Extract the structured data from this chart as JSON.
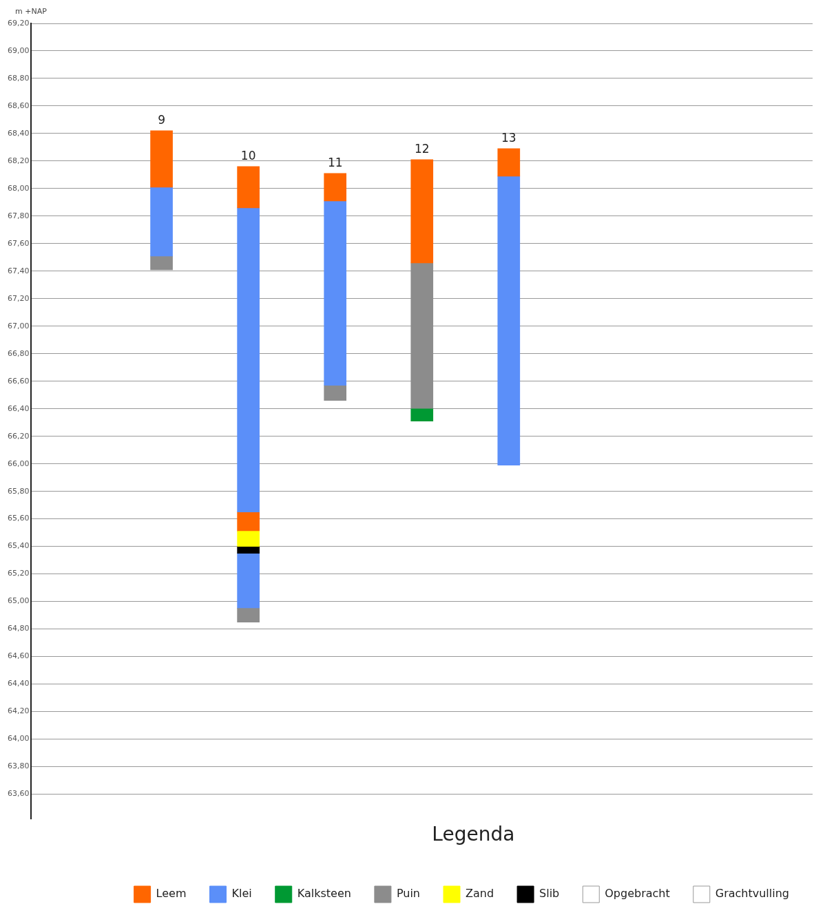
{
  "chart_data": {
    "type": "bar",
    "ylabel": "m +NAP",
    "legend_title": "Legenda",
    "legend": "bottom right",
    "grid": "y",
    "categories": [
      null,
      "9",
      "10",
      "11",
      "12",
      "13",
      null,
      null,
      null
    ],
    "ylim": [
      63.42,
      69.2
    ],
    "yticks": [
      {
        "value": 63.6,
        "label": "63,60"
      },
      {
        "value": 63.8,
        "label": "63,80"
      },
      {
        "value": 64.0,
        "label": "64,00"
      },
      {
        "value": 64.2,
        "label": "64,20"
      },
      {
        "value": 64.4,
        "label": "64,40"
      },
      {
        "value": 64.6,
        "label": "64,60"
      },
      {
        "value": 64.8,
        "label": "64,80"
      },
      {
        "value": 65.0,
        "label": "65,00"
      },
      {
        "value": 65.2,
        "label": "65,20"
      },
      {
        "value": 65.4,
        "label": "65,40"
      },
      {
        "value": 65.6,
        "label": "65,60"
      },
      {
        "value": 65.8,
        "label": "65,80"
      },
      {
        "value": 66.0,
        "label": "66,00"
      },
      {
        "value": 66.2,
        "label": "66,20"
      },
      {
        "value": 66.4,
        "label": "66,40"
      },
      {
        "value": 66.6,
        "label": "66,60"
      },
      {
        "value": 66.8,
        "label": "66,80"
      },
      {
        "value": 67.0,
        "label": "67,00"
      },
      {
        "value": 67.2,
        "label": "67,20"
      },
      {
        "value": 67.4,
        "label": "67,40"
      },
      {
        "value": 67.6,
        "label": "67,60"
      },
      {
        "value": 67.8,
        "label": "67,80"
      },
      {
        "value": 68.0,
        "label": "68,00"
      },
      {
        "value": 68.2,
        "label": "68,20"
      },
      {
        "value": 68.4,
        "label": "68,40"
      },
      {
        "value": 68.6,
        "label": "68,60"
      },
      {
        "value": 68.8,
        "label": "68,80"
      },
      {
        "value": 69.0,
        "label": "69,00"
      },
      {
        "value": 69.2,
        "label": "69,20"
      }
    ],
    "series": [
      {
        "name": "Leem",
        "color": "#ff6600",
        "values": [
          null,
          0.41,
          0.3,
          0.2,
          0.75,
          0.2,
          null,
          null,
          null
        ],
        "base": [
          null,
          68.01,
          67.86,
          67.91,
          67.46,
          68.09,
          null,
          null,
          null
        ]
      },
      {
        "name": "Klei",
        "color": "#5b8ff9",
        "values": [
          null,
          0.5,
          2.21,
          1.34,
          null,
          2.1,
          null,
          null,
          null
        ],
        "base": [
          null,
          67.51,
          65.65,
          66.57,
          null,
          65.99,
          null,
          null,
          null
        ]
      },
      {
        "name": "Kalksteen",
        "color": "#009933",
        "values": [
          null,
          null,
          null,
          null,
          0.09,
          null,
          null,
          null,
          null
        ],
        "base": [
          null,
          null,
          null,
          null,
          66.31,
          null,
          null,
          null,
          null
        ]
      },
      {
        "name": "Puin",
        "color": "#8c8c8c",
        "values": [
          null,
          0.1,
          0.1,
          0.11,
          1.06,
          null,
          null,
          null,
          null
        ],
        "base": [
          null,
          67.41,
          64.85,
          66.46,
          66.4,
          null,
          null,
          null,
          null
        ]
      },
      {
        "name": "Zand",
        "color": "#ffff00",
        "values": [
          null,
          null,
          0.11,
          null,
          null,
          null,
          null,
          null,
          null
        ],
        "base": [
          null,
          null,
          65.4,
          null,
          null,
          null,
          null,
          null,
          null
        ]
      },
      {
        "name": "Slib",
        "color": "#000000",
        "values": [
          null,
          null,
          0.05,
          null,
          null,
          null,
          null,
          null,
          null
        ],
        "base": [
          null,
          null,
          65.35,
          null,
          null,
          null,
          null,
          null,
          null
        ]
      },
      {
        "name": "Opgebracht",
        "color": "#ffffff",
        "values": [
          null,
          null,
          null,
          null,
          null,
          null,
          null,
          null,
          null
        ],
        "base": [
          null,
          null,
          null,
          null,
          null,
          null,
          null,
          null,
          null
        ]
      },
      {
        "name": "Grachtvulling",
        "color": "#ffffff",
        "values": [
          null,
          null,
          null,
          null,
          null,
          null,
          null,
          null,
          null
        ],
        "base": [
          null,
          null,
          null,
          null,
          null,
          null,
          null,
          null,
          null
        ]
      },
      {
        "color": "#ff6600",
        "values": [
          null,
          null,
          0.14,
          null,
          null,
          null,
          null,
          null,
          null
        ],
        "base": [
          null,
          null,
          65.51,
          null,
          null,
          null,
          null,
          null,
          null
        ]
      },
      {
        "color": "#5b8ff9",
        "values": [
          null,
          null,
          0.4,
          null,
          null,
          null,
          null,
          null,
          null
        ],
        "base": [
          null,
          null,
          64.95,
          null,
          null,
          null,
          null,
          null,
          null
        ]
      }
    ]
  }
}
